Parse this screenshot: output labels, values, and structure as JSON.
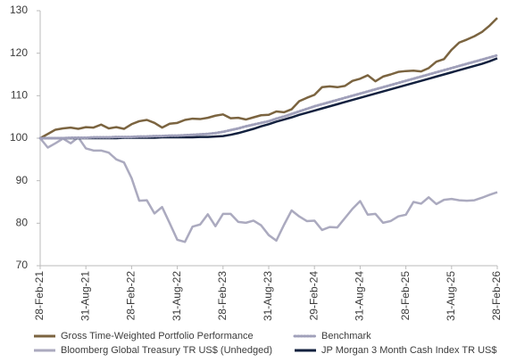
{
  "chart_data": {
    "type": "line",
    "categories": [
      "28-Feb-21",
      null,
      null,
      null,
      null,
      null,
      "31-Aug-21",
      null,
      null,
      null,
      null,
      null,
      "28-Feb-22",
      null,
      null,
      null,
      null,
      null,
      "31-Aug-22",
      null,
      null,
      null,
      null,
      null,
      "28-Feb-23",
      null,
      null,
      null,
      null,
      null,
      "31-Aug-23",
      null,
      null,
      null,
      null,
      null,
      "29-Feb-24",
      null,
      null,
      null,
      null,
      null,
      "31-Aug-24",
      null,
      null,
      null,
      null,
      null,
      "28-Feb-25",
      null,
      null,
      null,
      null,
      null,
      "31-Aug-25",
      null,
      null,
      null,
      null,
      null,
      "28-Feb-26"
    ],
    "ylim": [
      70,
      130
    ],
    "yticks": [
      70,
      80,
      90,
      100,
      110,
      120,
      130
    ],
    "grid": false,
    "series": [
      {
        "name": "Gross Time-Weighted Portfolio Performance",
        "color": "#7b6440",
        "style": "solid",
        "values": [
          100,
          101,
          102,
          102.3,
          102.5,
          102.2,
          102.6,
          102.5,
          103.2,
          102.3,
          102.6,
          102.2,
          103.3,
          104,
          104.3,
          103.6,
          102.5,
          103.4,
          103.6,
          104.3,
          104.6,
          104.5,
          104.8,
          105.3,
          105.6,
          104.7,
          104.8,
          104.4,
          104.9,
          105.4,
          105.5,
          106.3,
          106.1,
          106.8,
          108.7,
          109.5,
          110.2,
          112,
          112.2,
          112,
          112.3,
          113.5,
          114,
          114.8,
          113.4,
          114.5,
          115,
          115.6,
          115.8,
          115.9,
          115.7,
          116.5,
          118,
          118.6,
          120.8,
          122.5,
          123.2,
          124,
          125,
          126.5,
          128.3
        ]
      },
      {
        "name": "Benchmark",
        "color": "#a0a0ba",
        "style": "dotted",
        "values": [
          100,
          100,
          100,
          100,
          100.1,
          100.1,
          100.1,
          100.2,
          100.2,
          100.2,
          100.3,
          100.3,
          100.3,
          100.4,
          100.4,
          100.5,
          100.5,
          100.6,
          100.6,
          100.7,
          100.8,
          100.9,
          101,
          101.2,
          101.5,
          101.9,
          102.3,
          102.8,
          103.2,
          103.6,
          104,
          104.6,
          105.1,
          105.7,
          106.3,
          106.9,
          107.5,
          108,
          108.5,
          109,
          109.5,
          110,
          110.5,
          111,
          111.5,
          112,
          112.5,
          113,
          113.5,
          114,
          114.5,
          115,
          115.5,
          116,
          116.5,
          117,
          117.5,
          118,
          118.5,
          119,
          119.5
        ]
      },
      {
        "name": "Bloomberg Global Treasury TR US$ (Unhedged)",
        "color": "#abaabf",
        "style": "solid",
        "values": [
          100,
          97.8,
          98.8,
          99.9,
          98.8,
          100.2,
          97.6,
          97.1,
          97.1,
          96.6,
          95,
          94.3,
          90.6,
          85.3,
          85.4,
          82.3,
          83.8,
          80,
          76.1,
          75.6,
          79.2,
          79.7,
          82.1,
          79.3,
          82.2,
          82.2,
          80.3,
          80.1,
          80.6,
          79.5,
          77.2,
          75.9,
          79.6,
          83,
          81.6,
          80.5,
          80.6,
          78.4,
          79.1,
          79,
          81.2,
          83.4,
          85.2,
          82,
          82.2,
          80.1,
          80.5,
          81.6,
          82,
          85,
          84.6,
          86.1,
          84.5,
          85.5,
          85.7,
          85.4,
          85.3,
          85.4,
          86,
          86.7,
          87.3
        ]
      },
      {
        "name": "JP Morgan 3 Month Cash Index TR US$",
        "color": "#13213f",
        "style": "solid",
        "values": [
          100,
          100,
          100,
          100,
          100,
          100,
          100,
          100,
          100,
          100,
          100,
          100.1,
          100.1,
          100.1,
          100.1,
          100.1,
          100.2,
          100.2,
          100.2,
          100.2,
          100.2,
          100.3,
          100.3,
          100.4,
          100.5,
          100.8,
          101.2,
          101.7,
          102.2,
          102.8,
          103.3,
          103.9,
          104.4,
          104.9,
          105.5,
          106,
          106.5,
          107,
          107.5,
          108,
          108.5,
          109,
          109.5,
          110,
          110.5,
          111,
          111.5,
          112,
          112.5,
          113,
          113.5,
          114,
          114.5,
          115,
          115.5,
          116,
          116.5,
          117,
          117.5,
          118.1,
          118.8
        ]
      }
    ]
  }
}
